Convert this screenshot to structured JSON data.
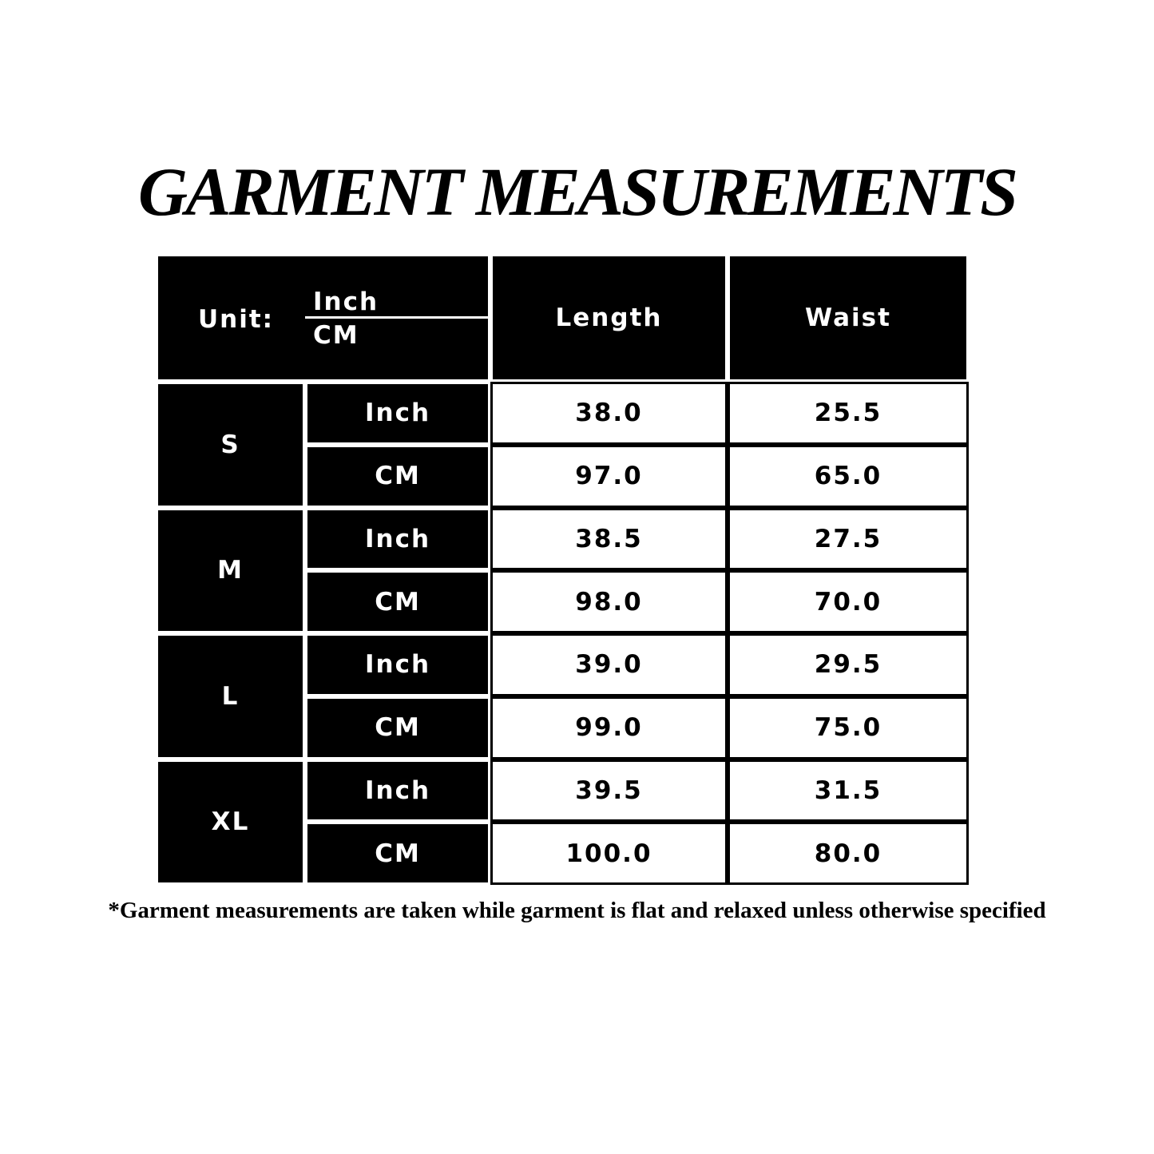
{
  "title": "GARMENT MEASUREMENTS",
  "table": {
    "unit_label": "Unit:",
    "unit_options": [
      "Inch",
      "CM"
    ],
    "columns": [
      "Length",
      "Waist"
    ],
    "sizes": [
      {
        "size": "S",
        "rows": [
          {
            "unit": "Inch",
            "values": [
              "38.0",
              "25.5"
            ]
          },
          {
            "unit": "CM",
            "values": [
              "97.0",
              "65.0"
            ]
          }
        ]
      },
      {
        "size": "M",
        "rows": [
          {
            "unit": "Inch",
            "values": [
              "38.5",
              "27.5"
            ]
          },
          {
            "unit": "CM",
            "values": [
              "98.0",
              "70.0"
            ]
          }
        ]
      },
      {
        "size": "L",
        "rows": [
          {
            "unit": "Inch",
            "values": [
              "39.0",
              "29.5"
            ]
          },
          {
            "unit": "CM",
            "values": [
              "99.0",
              "75.0"
            ]
          }
        ]
      },
      {
        "size": "XL",
        "rows": [
          {
            "unit": "Inch",
            "values": [
              "39.5",
              "31.5"
            ]
          },
          {
            "unit": "CM",
            "values": [
              "100.0",
              "80.0"
            ]
          }
        ]
      }
    ]
  },
  "note": "*Garment measurements are taken while garment is flat and relaxed unless otherwise specified"
}
